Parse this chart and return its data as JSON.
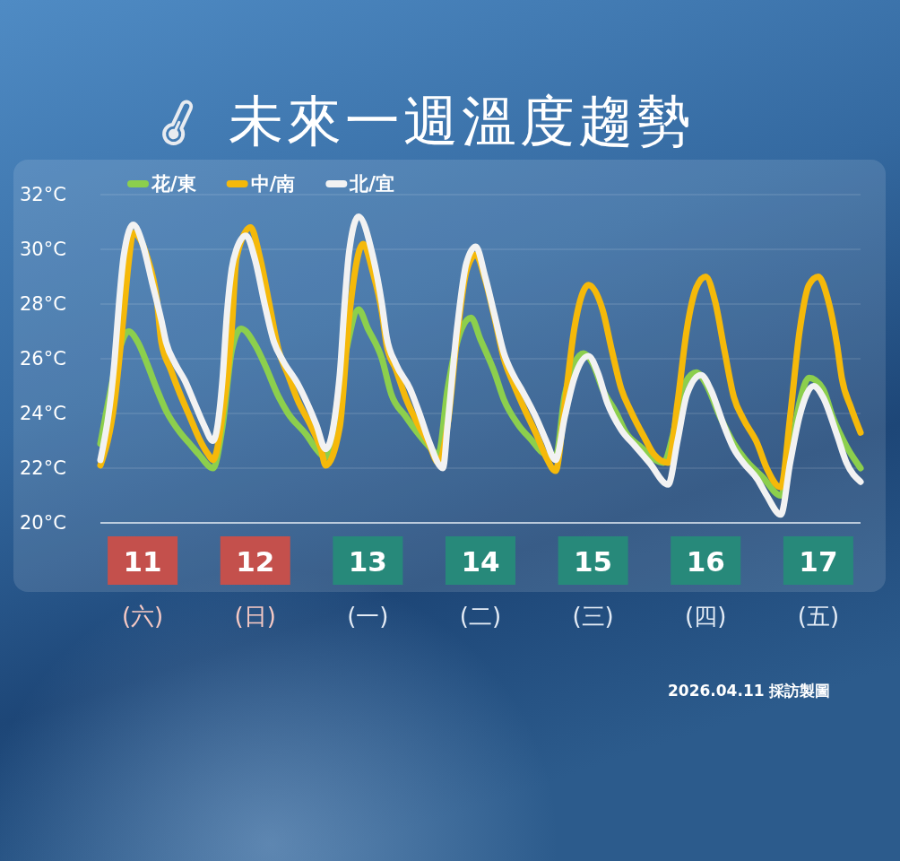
{
  "chart_data": {
    "type": "line",
    "title": "未來一週溫度趨勢",
    "annotations": [
      "2026.04.11 採訪製圖"
    ],
    "xlim": [
      "2026-04-11T03:00",
      "2026-04-17T21:00"
    ],
    "xticks": [
      {
        "value": "2026-04-11T12:00",
        "label": "11\n(六)"
      },
      {
        "value": "2026-04-12T12:00",
        "label": "12\n(日)"
      },
      {
        "value": "2026-04-13T12:00",
        "label": "13\n(一)"
      },
      {
        "value": "2026-04-14T12:00",
        "label": "14\n(二)"
      },
      {
        "value": "2026-04-15T12:00",
        "label": "15\n(三)"
      },
      {
        "value": "2026-04-16T12:00",
        "label": "16\n(四)"
      },
      {
        "value": "2026-04-17T12:00",
        "label": "17\n(五)"
      }
    ],
    "ylim": [
      20,
      32
    ],
    "yticks": [
      {
        "value": 20,
        "label": "20°C"
      },
      {
        "value": 22,
        "label": "22°C"
      },
      {
        "value": 24,
        "label": "24°C"
      },
      {
        "value": 26,
        "label": "26°C"
      },
      {
        "value": 28,
        "label": "28°C"
      },
      {
        "value": 30,
        "label": "30°C"
      },
      {
        "value": 32,
        "label": "32°C"
      }
    ],
    "grid": "y",
    "legend": "top left",
    "series": [
      {
        "name": "花/東",
        "color": "#8ccf4d",
        "x": [
          "2026-04-11T03:00",
          "2026-04-11T05:00",
          "2026-04-11T07:00",
          "2026-04-11T09:00",
          "2026-04-11T11:00",
          "2026-04-11T13:00",
          "2026-04-11T15:00",
          "2026-04-11T17:00",
          "2026-04-11T20:00",
          "2026-04-11T22:00",
          "2026-04-12T00:00",
          "2026-04-12T03:00",
          "2026-04-12T05:00",
          "2026-04-12T07:00",
          "2026-04-12T09:00",
          "2026-04-12T12:00",
          "2026-04-12T14:00",
          "2026-04-12T17:00",
          "2026-04-12T19:00",
          "2026-04-12T23:00",
          "2026-04-13T01:00",
          "2026-04-13T03:00",
          "2026-04-13T07:00",
          "2026-04-13T10:00",
          "2026-04-13T12:00",
          "2026-04-13T15:00",
          "2026-04-13T17:00",
          "2026-04-13T20:00",
          "2026-04-13T23:00",
          "2026-04-14T01:00",
          "2026-04-14T03:00",
          "2026-04-14T05:00",
          "2026-04-14T08:00",
          "2026-04-14T10:00",
          "2026-04-14T12:00",
          "2026-04-14T15:00",
          "2026-04-14T17:00",
          "2026-04-14T20:00",
          "2026-04-14T23:00",
          "2026-04-15T01:00",
          "2026-04-15T04:00",
          "2026-04-15T06:00",
          "2026-04-15T10:00",
          "2026-04-15T12:00",
          "2026-04-15T14:00",
          "2026-04-15T17:00",
          "2026-04-15T19:00",
          "2026-04-15T22:00",
          "2026-04-16T03:00",
          "2026-04-16T05:00",
          "2026-04-16T07:00",
          "2026-04-16T10:00",
          "2026-04-16T12:00",
          "2026-04-16T15:00",
          "2026-04-16T18:00",
          "2026-04-16T21:00",
          "2026-04-17T00:00",
          "2026-04-17T04:00",
          "2026-04-17T06:00",
          "2026-04-17T08:00",
          "2026-04-17T10:00",
          "2026-04-17T13:00",
          "2026-04-17T15:00",
          "2026-04-17T18:00",
          "2026-04-17T21:00"
        ],
        "values": [
          22.9,
          24.7,
          26.3,
          27.0,
          26.6,
          25.8,
          24.9,
          24.1,
          23.3,
          22.9,
          22.5,
          22.0,
          23.5,
          26.3,
          27.1,
          26.5,
          25.8,
          24.6,
          24.0,
          23.2,
          22.7,
          22.4,
          26.0,
          27.8,
          27.1,
          26.0,
          24.7,
          23.9,
          23.2,
          22.8,
          22.5,
          24.9,
          27.1,
          27.5,
          26.7,
          25.5,
          24.5,
          23.6,
          23.0,
          22.6,
          22.4,
          24.7,
          26.2,
          25.8,
          24.9,
          24.0,
          23.3,
          22.8,
          22.2,
          23.2,
          24.9,
          25.5,
          25.1,
          23.9,
          22.9,
          22.2,
          21.7,
          21.0,
          22.5,
          24.4,
          25.3,
          24.9,
          23.9,
          22.8,
          22.0
        ]
      },
      {
        "name": "中/南",
        "color": "#f5b90a",
        "x": [
          "2026-04-11T03:00",
          "2026-04-11T06:00",
          "2026-04-11T08:00",
          "2026-04-11T09:00",
          "2026-04-11T10:00",
          "2026-04-11T13:00",
          "2026-04-11T15:00",
          "2026-04-11T16:00",
          "2026-04-11T18:00",
          "2026-04-11T20:00",
          "2026-04-11T22:00",
          "2026-04-12T00:00",
          "2026-04-12T02:00",
          "2026-04-12T03:00",
          "2026-04-12T05:00",
          "2026-04-12T07:00",
          "2026-04-12T08:00",
          "2026-04-12T11:00",
          "2026-04-12T13:00",
          "2026-04-12T15:00",
          "2026-04-12T17:00",
          "2026-04-12T19:00",
          "2026-04-12T21:00",
          "2026-04-13T00:00",
          "2026-04-13T02:00",
          "2026-04-13T03:00",
          "2026-04-13T06:00",
          "2026-04-13T08:00",
          "2026-04-13T11:00",
          "2026-04-13T13:00",
          "2026-04-13T15:00",
          "2026-04-13T16:00",
          "2026-04-13T18:00",
          "2026-04-13T20:00",
          "2026-04-13T23:00",
          "2026-04-14T01:00",
          "2026-04-14T03:00",
          "2026-04-14T05:00",
          "2026-04-14T07:00",
          "2026-04-14T09:00",
          "2026-04-14T11:00",
          "2026-04-14T13:00",
          "2026-04-14T15:00",
          "2026-04-14T17:00",
          "2026-04-14T19:00",
          "2026-04-14T21:00",
          "2026-04-15T00:00",
          "2026-04-15T02:00",
          "2026-04-15T04:00",
          "2026-04-15T06:00",
          "2026-04-15T08:00",
          "2026-04-15T10:00",
          "2026-04-15T11:00",
          "2026-04-15T14:00",
          "2026-04-15T16:00",
          "2026-04-15T18:00",
          "2026-04-15T20:00",
          "2026-04-15T23:00",
          "2026-04-16T01:00",
          "2026-04-16T04:00",
          "2026-04-16T06:00",
          "2026-04-16T08:00",
          "2026-04-16T10:00",
          "2026-04-16T12:00",
          "2026-04-16T14:00",
          "2026-04-16T16:00",
          "2026-04-16T18:00",
          "2026-04-16T20:00",
          "2026-04-16T23:00",
          "2026-04-17T01:00",
          "2026-04-17T04:00",
          "2026-04-17T06:00",
          "2026-04-17T08:00",
          "2026-04-17T10:00",
          "2026-04-17T12:00",
          "2026-04-17T14:00",
          "2026-04-17T16:00",
          "2026-04-17T17:00",
          "2026-04-17T19:00",
          "2026-04-17T21:00"
        ],
        "values": [
          22.1,
          24.4,
          27.7,
          29.5,
          30.6,
          29.7,
          28.2,
          26.6,
          25.6,
          24.7,
          23.9,
          23.1,
          22.5,
          22.3,
          23.9,
          27.1,
          29.7,
          30.8,
          29.7,
          28.0,
          26.3,
          25.4,
          24.5,
          23.5,
          22.7,
          22.1,
          23.5,
          27.5,
          30.2,
          29.2,
          27.7,
          26.5,
          25.6,
          24.6,
          23.5,
          22.9,
          22.2,
          23.6,
          26.8,
          29.2,
          29.8,
          28.9,
          27.5,
          26.0,
          25.1,
          24.3,
          23.2,
          22.4,
          21.9,
          24.4,
          27.1,
          28.5,
          28.7,
          27.8,
          26.3,
          24.9,
          24.1,
          23.1,
          22.5,
          22.2,
          24.4,
          27.1,
          28.6,
          29.0,
          28.1,
          26.3,
          24.6,
          23.8,
          22.9,
          22.0,
          21.3,
          23.9,
          27.0,
          28.7,
          29.0,
          28.2,
          26.5,
          25.3,
          24.2,
          23.3
        ]
      },
      {
        "name": "北/宜",
        "color": "#f2f2f2",
        "x": [
          "2026-04-11T03:00",
          "2026-04-11T06:00",
          "2026-04-11T07:00",
          "2026-04-11T08:00",
          "2026-04-11T10:00",
          "2026-04-11T12:00",
          "2026-04-11T14:00",
          "2026-04-11T16:00",
          "2026-04-11T17:00",
          "2026-04-11T19:00",
          "2026-04-11T21:00",
          "2026-04-11T23:00",
          "2026-04-12T01:00",
          "2026-04-12T03:00",
          "2026-04-12T05:00",
          "2026-04-12T06:00",
          "2026-04-12T07:00",
          "2026-04-12T08:00",
          "2026-04-12T10:00",
          "2026-04-12T12:00",
          "2026-04-12T14:00",
          "2026-04-12T16:00",
          "2026-04-12T18:00",
          "2026-04-12T21:00",
          "2026-04-12T23:00",
          "2026-04-13T01:00",
          "2026-04-13T03:00",
          "2026-04-13T06:00",
          "2026-04-13T07:00",
          "2026-04-13T08:00",
          "2026-04-13T10:00",
          "2026-04-13T13:00",
          "2026-04-13T15:00",
          "2026-04-13T16:00",
          "2026-04-13T18:00",
          "2026-04-13T21:00",
          "2026-04-13T23:00",
          "2026-04-14T01:00",
          "2026-04-14T04:00",
          "2026-04-14T05:00",
          "2026-04-14T07:00",
          "2026-04-14T09:00",
          "2026-04-14T11:00",
          "2026-04-14T13:00",
          "2026-04-14T15:00",
          "2026-04-14T17:00",
          "2026-04-14T19:00",
          "2026-04-14T21:00",
          "2026-04-15T00:00",
          "2026-04-15T02:00",
          "2026-04-15T04:00",
          "2026-04-15T06:00",
          "2026-04-15T08:00",
          "2026-04-15T11:00",
          "2026-04-15T13:00",
          "2026-04-15T15:00",
          "2026-04-15T18:00",
          "2026-04-15T21:00",
          "2026-04-16T00:00",
          "2026-04-16T04:00",
          "2026-04-16T06:00",
          "2026-04-16T08:00",
          "2026-04-16T11:00",
          "2026-04-16T13:00",
          "2026-04-16T16:00",
          "2026-04-16T18:00",
          "2026-04-16T20:00",
          "2026-04-16T23:00",
          "2026-04-17T01:00",
          "2026-04-17T04:00",
          "2026-04-17T06:00",
          "2026-04-17T08:00",
          "2026-04-17T11:00",
          "2026-04-17T13:00",
          "2026-04-17T16:00",
          "2026-04-17T18:00",
          "2026-04-17T21:00"
        ],
        "values": [
          22.3,
          25.9,
          28.1,
          29.8,
          30.9,
          30.2,
          28.8,
          27.4,
          26.6,
          25.8,
          25.2,
          24.4,
          23.6,
          23.0,
          25.2,
          27.7,
          29.3,
          30.0,
          30.5,
          29.6,
          28.0,
          26.6,
          25.9,
          25.1,
          24.4,
          23.6,
          22.7,
          25.4,
          27.9,
          29.9,
          31.2,
          29.8,
          28.0,
          26.8,
          25.8,
          24.9,
          24.0,
          23.0,
          22.0,
          23.6,
          27.1,
          29.5,
          30.1,
          29.0,
          27.6,
          26.2,
          25.4,
          24.8,
          23.8,
          23.0,
          22.3,
          23.9,
          25.3,
          26.1,
          25.5,
          24.4,
          23.4,
          22.8,
          22.2,
          21.4,
          23.0,
          24.7,
          25.4,
          24.9,
          23.5,
          22.7,
          22.2,
          21.6,
          21.0,
          20.3,
          22.2,
          23.9,
          25.0,
          24.6,
          23.2,
          22.2,
          21.5
        ]
      }
    ]
  }
}
